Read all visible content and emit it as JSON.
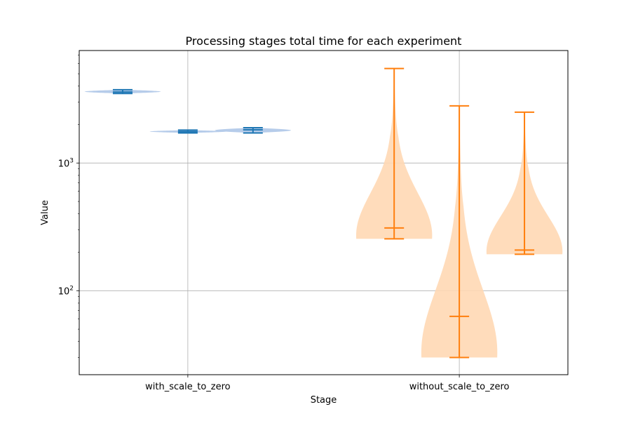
{
  "chart_data": {
    "type": "violin",
    "title": "Processing stages total time for each experiment",
    "xlabel": "Stage",
    "ylabel": "Value",
    "yscale": "log",
    "ylim": [
      22,
      7600
    ],
    "grid": true,
    "categories": [
      "with_scale_to_zero",
      "without_scale_to_zero"
    ],
    "yticks": [
      {
        "value": 100,
        "base": "10",
        "exp": "2"
      },
      {
        "value": 1000,
        "base": "10",
        "exp": "3"
      }
    ],
    "series": [
      {
        "category": "with_scale_to_zero",
        "color": "#1f77b4",
        "fill": "#aec7e8",
        "violins": [
          {
            "x": 0.38,
            "min": 3500,
            "max": 3750,
            "median": 3600,
            "width": 0.14
          },
          {
            "x": 0.5,
            "min": 1720,
            "max": 1810,
            "median": 1760,
            "width": 0.14
          },
          {
            "x": 0.62,
            "min": 1720,
            "max": 1890,
            "median": 1820,
            "width": 0.14
          }
        ]
      },
      {
        "category": "without_scale_to_zero",
        "color": "#ff7f0e",
        "fill": "#ffd8b4",
        "violins": [
          {
            "x": 0.88,
            "min": 255,
            "max": 5500,
            "median": 310,
            "width": 0.14
          },
          {
            "x": 1.0,
            "min": 30,
            "max": 2800,
            "median": 63,
            "width": 0.14
          },
          {
            "x": 1.12,
            "min": 193,
            "max": 2500,
            "median": 208,
            "width": 0.14
          }
        ]
      }
    ]
  }
}
